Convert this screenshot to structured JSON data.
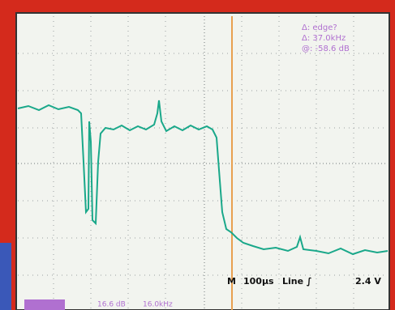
{
  "readouts": {
    "line1": "Δ: edge?",
    "line2": "Δ: 37.0kHz",
    "line3": "@: -58.6 dB"
  },
  "status": {
    "marker": "M",
    "timebase": "100µs",
    "trigger": "Line ∫",
    "level": "2.4 V"
  },
  "footer": {
    "left": "16.6 dB",
    "right": "16.0kHz"
  }
}
